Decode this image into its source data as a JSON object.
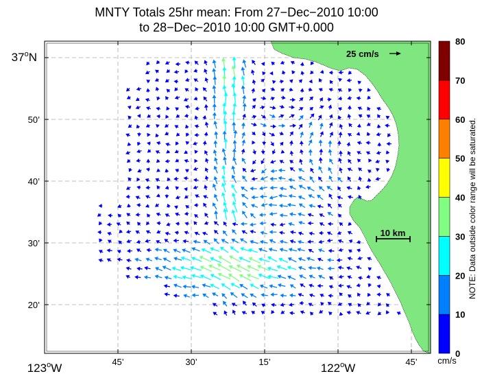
{
  "title": {
    "line1": "MNTY Totals 25hr mean: From 27−Dec−2010 10:00",
    "line2": "to 28−Dec−2010 10:00 GMT+0.000"
  },
  "colors": {
    "land": "#80e680",
    "grid": "#aaaaaa"
  },
  "map": {
    "x_ticks": [
      {
        "lon": -123.0,
        "label": "123",
        "suffix": "W",
        "big": true
      },
      {
        "lon": -122.75,
        "label": "45’",
        "big": false
      },
      {
        "lon": -122.5,
        "label": "30’",
        "big": false
      },
      {
        "lon": -122.25,
        "label": "15’",
        "big": false
      },
      {
        "lon": -122.0,
        "label": "122",
        "suffix": "W",
        "big": true
      },
      {
        "lon": -121.75,
        "label": "45’",
        "big": false
      }
    ],
    "y_ticks": [
      {
        "lat": 37.0,
        "label": "37",
        "suffix": "N",
        "big": true
      },
      {
        "lat": 36.8333,
        "label": "50’",
        "big": false
      },
      {
        "lat": 36.6667,
        "label": "40’",
        "big": false
      },
      {
        "lat": 36.5,
        "label": "30’",
        "big": false
      },
      {
        "lat": 36.3333,
        "label": "20’",
        "big": false
      }
    ],
    "reference_vector": {
      "label": "25 cm/s",
      "speed_cm_s": 25
    },
    "scale_bar": {
      "label": "10 km"
    },
    "colorbar": {
      "unit": "cm/s",
      "ticks": [
        "0",
        "10",
        "20",
        "30",
        "40",
        "50",
        "60",
        "70",
        "80"
      ],
      "colors": [
        "#0000ff",
        "#0080ff",
        "#00ffff",
        "#80ff80",
        "#ffff00",
        "#ff8000",
        "#ff0000",
        "#800000"
      ],
      "note": "NOTE: Data outside color range will be saturated."
    }
  }
}
